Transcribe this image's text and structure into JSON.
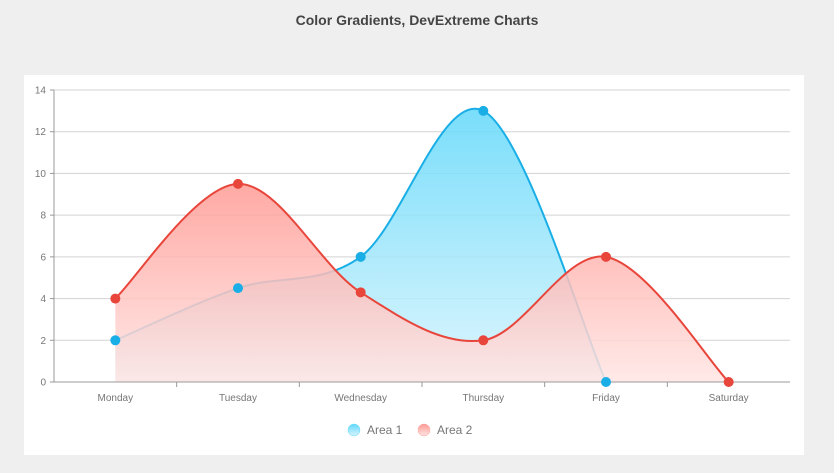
{
  "page": {
    "title": "Color Gradients, DevExtreme Charts"
  },
  "chart_data": {
    "type": "area",
    "title": "",
    "xlabel": "",
    "ylabel": "",
    "categories": [
      "Monday",
      "Tuesday",
      "Wednesday",
      "Thursday",
      "Friday",
      "Saturday"
    ],
    "ylim": [
      0,
      14
    ],
    "yticks": [
      "0",
      "2",
      "4",
      "6",
      "8",
      "10",
      "12",
      "14"
    ],
    "grid": true,
    "legend_position": "bottom-center",
    "series": [
      {
        "name": "Area 1",
        "values": [
          2,
          4.5,
          6,
          13,
          0,
          null
        ],
        "color": "#1aaee6",
        "fill_top": "#62d8fa",
        "fill_bottom": "#d8f4fd"
      },
      {
        "name": "Area 2",
        "values": [
          4,
          9.5,
          4.3,
          2,
          6,
          0
        ],
        "color": "#e8453b",
        "fill_top": "#ff9a94",
        "fill_bottom": "#ffe6e4"
      }
    ]
  }
}
